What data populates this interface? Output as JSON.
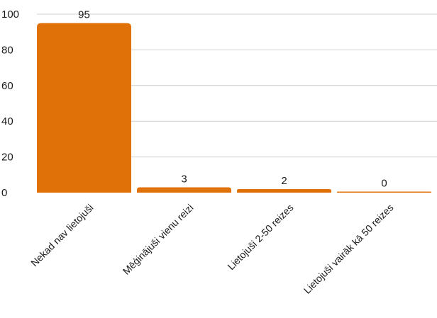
{
  "chart_data": {
    "type": "bar",
    "title": "",
    "xlabel": "",
    "ylabel": "",
    "categories": [
      "Nekad nav lietojuši",
      "Mēģinājuši vienu reizi",
      "Lietojuši 2-50 reizes",
      "Lietojuši vairāk kā 50 reizes"
    ],
    "values": [
      95,
      3,
      2,
      0
    ],
    "data_labels": [
      "95",
      "3",
      "2",
      "0"
    ],
    "ylim": [
      0,
      100
    ],
    "yticks": [
      0,
      20,
      40,
      60,
      80,
      100
    ],
    "ytick_labels": [
      "0",
      "20",
      "40",
      "60",
      "80",
      "100"
    ],
    "grid": true,
    "legend": "none",
    "bar_color": "#e07008",
    "grid_color": "#cfcfcf"
  }
}
